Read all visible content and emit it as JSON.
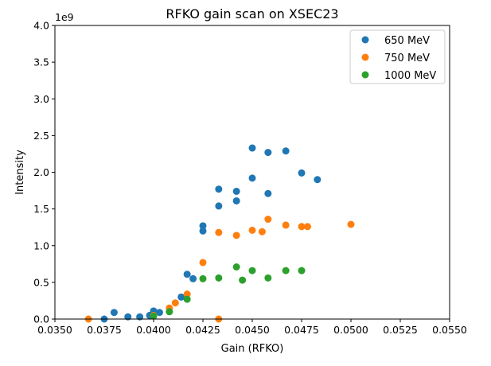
{
  "chart_data": {
    "type": "scatter",
    "title": "RFKO gain scan on XSEC23",
    "xlabel": "Gain (RFKO)",
    "ylabel": "Intensity",
    "y_offset_label": "1e9",
    "xlim": [
      0.035,
      0.055
    ],
    "ylim": [
      0,
      4.0
    ],
    "x_ticks": [
      "0.0350",
      "0.0375",
      "0.0400",
      "0.0425",
      "0.0450",
      "0.0475",
      "0.0500",
      "0.0525",
      "0.0550"
    ],
    "y_ticks": [
      "0.0",
      "0.5",
      "1.0",
      "1.5",
      "2.0",
      "2.5",
      "3.0",
      "3.5",
      "4.0"
    ],
    "grid": false,
    "legend_position": "top-right",
    "series": [
      {
        "name": "650 MeV",
        "color": "#1f77b4",
        "points": [
          [
            0.0375,
            0.0
          ],
          [
            0.038,
            0.09
          ],
          [
            0.0387,
            0.03
          ],
          [
            0.0393,
            0.03
          ],
          [
            0.0398,
            0.05
          ],
          [
            0.04,
            0.11
          ],
          [
            0.0403,
            0.09
          ],
          [
            0.0414,
            0.3
          ],
          [
            0.0417,
            0.61
          ],
          [
            0.042,
            0.55
          ],
          [
            0.0425,
            1.27
          ],
          [
            0.0425,
            1.2
          ],
          [
            0.0433,
            1.77
          ],
          [
            0.0433,
            1.54
          ],
          [
            0.0442,
            1.74
          ],
          [
            0.0442,
            1.61
          ],
          [
            0.045,
            2.33
          ],
          [
            0.045,
            1.92
          ],
          [
            0.0458,
            2.27
          ],
          [
            0.0458,
            1.71
          ],
          [
            0.0467,
            2.29
          ],
          [
            0.0475,
            1.99
          ],
          [
            0.0483,
            1.9
          ]
        ]
      },
      {
        "name": "750 MeV",
        "color": "#ff7f0e",
        "points": [
          [
            0.0367,
            0.0
          ],
          [
            0.04,
            0.05
          ],
          [
            0.0408,
            0.15
          ],
          [
            0.0411,
            0.22
          ],
          [
            0.0417,
            0.34
          ],
          [
            0.0425,
            0.77
          ],
          [
            0.0433,
            1.18
          ],
          [
            0.0433,
            0.0
          ],
          [
            0.0442,
            1.14
          ],
          [
            0.045,
            1.21
          ],
          [
            0.0455,
            1.19
          ],
          [
            0.0458,
            1.36
          ],
          [
            0.0467,
            1.28
          ],
          [
            0.0475,
            1.26
          ],
          [
            0.0478,
            1.26
          ],
          [
            0.05,
            1.29
          ]
        ]
      },
      {
        "name": "1000 MeV",
        "color": "#2ca02c",
        "points": [
          [
            0.04,
            0.04
          ],
          [
            0.0408,
            0.1
          ],
          [
            0.0417,
            0.27
          ],
          [
            0.0425,
            0.55
          ],
          [
            0.0433,
            0.56
          ],
          [
            0.0442,
            0.71
          ],
          [
            0.0445,
            0.53
          ],
          [
            0.045,
            0.66
          ],
          [
            0.0458,
            0.56
          ],
          [
            0.0467,
            0.66
          ],
          [
            0.0475,
            0.66
          ]
        ]
      }
    ]
  }
}
